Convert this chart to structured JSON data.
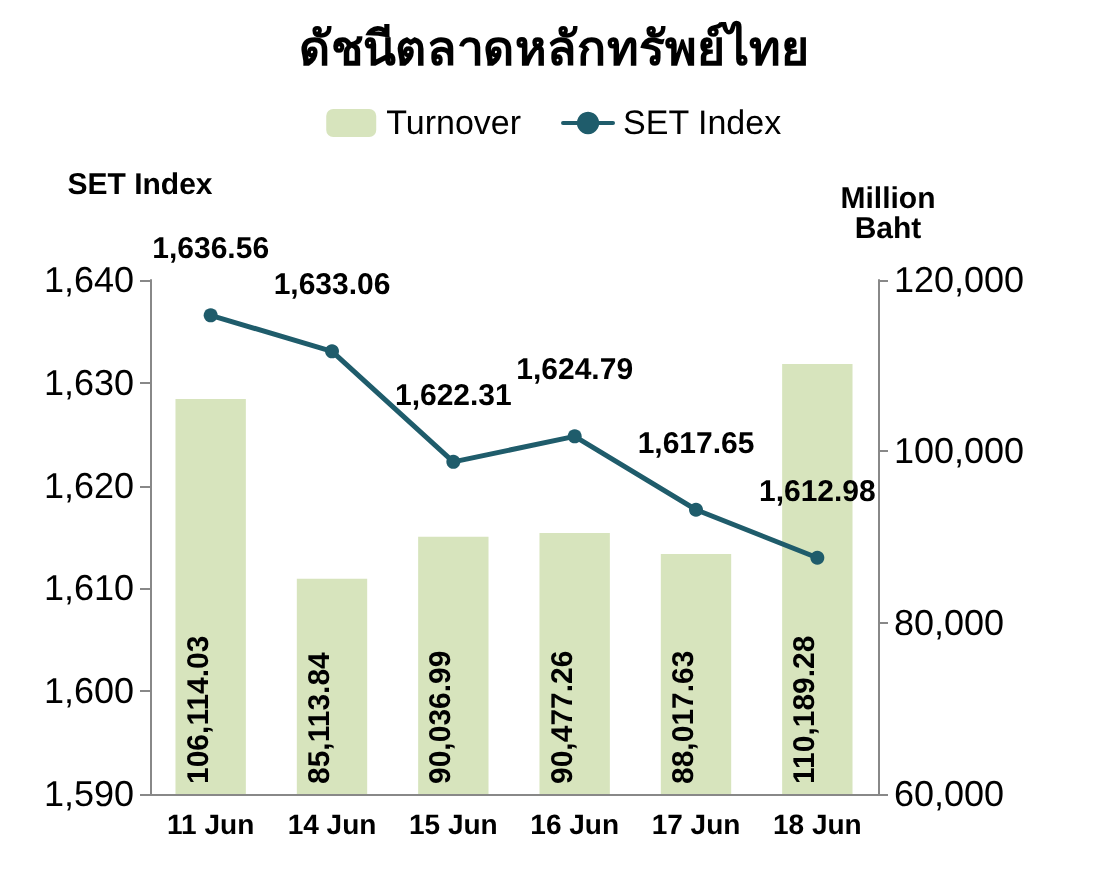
{
  "chart_data": {
    "type": "bar",
    "title": "ดัชนีตลาดหลักทรัพย์ไทย",
    "ylabel": "SET Index",
    "y2label": "Million\nBaht",
    "categories": [
      "11 Jun",
      "14 Jun",
      "15 Jun",
      "16 Jun",
      "17 Jun",
      "18 Jun"
    ],
    "series": [
      {
        "name": "Turnover",
        "axis": "y2",
        "color": "#d7e4bd",
        "values": [
          106114.03,
          85113.84,
          90036.99,
          90477.26,
          88017.63,
          110189.28
        ],
        "value_labels": [
          "106,114.03",
          "85,113.84",
          "90,036.99",
          "90,477.26",
          "88,017.63",
          "110,189.28"
        ]
      },
      {
        "name": "SET Index",
        "type": "line",
        "color": "#1f5c6b",
        "marker": "circle",
        "values": [
          1636.56,
          1633.06,
          1622.31,
          1624.79,
          1617.65,
          1612.98
        ],
        "value_labels": [
          "1,636.56",
          "1,633.06",
          "1,622.31",
          "1,624.79",
          "1,617.65",
          "1,612.98"
        ]
      }
    ],
    "ylim": [
      1590,
      1640
    ],
    "yticks": [
      {
        "value": 1590,
        "label": "1,590"
      },
      {
        "value": 1600,
        "label": "1,600"
      },
      {
        "value": 1610,
        "label": "1,610"
      },
      {
        "value": 1620,
        "label": "1,620"
      },
      {
        "value": 1630,
        "label": "1,630"
      },
      {
        "value": 1640,
        "label": "1,640"
      }
    ],
    "y2lim": [
      60000,
      120000
    ],
    "y2ticks": [
      {
        "value": 60000,
        "label": "60,000"
      },
      {
        "value": 80000,
        "label": "80,000"
      },
      {
        "value": 100000,
        "label": "100,000"
      },
      {
        "value": 120000,
        "label": "120,000"
      }
    ],
    "legend": "top",
    "grid": false
  }
}
